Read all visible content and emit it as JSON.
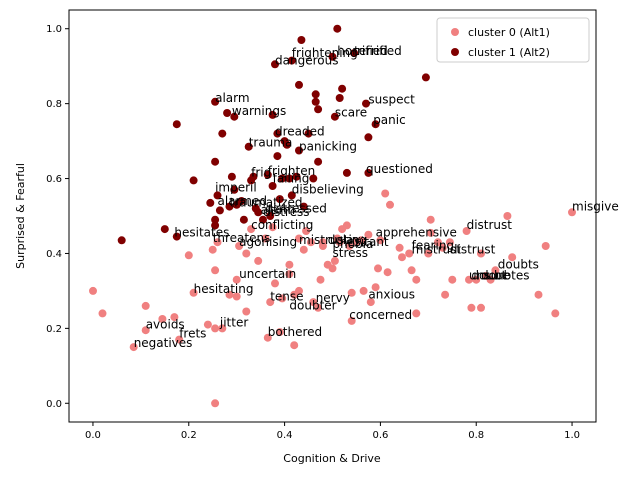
{
  "chart_data": {
    "type": "scatter",
    "xlabel": "Cognition & Drive",
    "ylabel": "Surprised & Fearful",
    "xlim": [
      -0.05,
      1.05
    ],
    "ylim": [
      -0.05,
      1.05
    ],
    "xticks": [
      "0.0",
      "0.2",
      "0.4",
      "0.6",
      "0.8",
      "1.0"
    ],
    "yticks": [
      "0.0",
      "0.2",
      "0.4",
      "0.6",
      "0.8",
      "1.0"
    ],
    "grid": false,
    "legend_position": "top-right",
    "series": [
      {
        "name": "cluster 0 (Alt1)",
        "color": "#f08080",
        "points": [
          [
            0.0,
            0.3
          ],
          [
            0.02,
            0.24
          ],
          [
            0.085,
            0.15
          ],
          [
            0.11,
            0.26
          ],
          [
            0.11,
            0.195
          ],
          [
            0.145,
            0.225
          ],
          [
            0.17,
            0.23
          ],
          [
            0.18,
            0.17
          ],
          [
            0.2,
            0.395
          ],
          [
            0.21,
            0.295
          ],
          [
            0.24,
            0.21
          ],
          [
            0.25,
            0.41
          ],
          [
            0.255,
            0.0
          ],
          [
            0.255,
            0.355
          ],
          [
            0.255,
            0.2
          ],
          [
            0.26,
            0.43
          ],
          [
            0.27,
            0.2
          ],
          [
            0.285,
            0.29
          ],
          [
            0.3,
            0.285
          ],
          [
            0.3,
            0.33
          ],
          [
            0.305,
            0.42
          ],
          [
            0.32,
            0.4
          ],
          [
            0.32,
            0.245
          ],
          [
            0.33,
            0.465
          ],
          [
            0.345,
            0.38
          ],
          [
            0.36,
            0.44
          ],
          [
            0.365,
            0.175
          ],
          [
            0.37,
            0.27
          ],
          [
            0.375,
            0.47
          ],
          [
            0.38,
            0.32
          ],
          [
            0.39,
            0.19
          ],
          [
            0.395,
            0.28
          ],
          [
            0.41,
            0.37
          ],
          [
            0.41,
            0.345
          ],
          [
            0.42,
            0.29
          ],
          [
            0.42,
            0.155
          ],
          [
            0.43,
            0.44
          ],
          [
            0.43,
            0.3
          ],
          [
            0.44,
            0.41
          ],
          [
            0.445,
            0.46
          ],
          [
            0.455,
            0.43
          ],
          [
            0.46,
            0.27
          ],
          [
            0.47,
            0.255
          ],
          [
            0.475,
            0.33
          ],
          [
            0.48,
            0.43
          ],
          [
            0.48,
            0.42
          ],
          [
            0.49,
            0.37
          ],
          [
            0.5,
            0.36
          ],
          [
            0.505,
            0.38
          ],
          [
            0.51,
            0.44
          ],
          [
            0.515,
            0.43
          ],
          [
            0.52,
            0.465
          ],
          [
            0.53,
            0.475
          ],
          [
            0.535,
            0.42
          ],
          [
            0.54,
            0.295
          ],
          [
            0.54,
            0.22
          ],
          [
            0.55,
            0.43
          ],
          [
            0.56,
            0.435
          ],
          [
            0.565,
            0.3
          ],
          [
            0.575,
            0.45
          ],
          [
            0.58,
            0.27
          ],
          [
            0.59,
            0.31
          ],
          [
            0.595,
            0.36
          ],
          [
            0.6,
            0.435
          ],
          [
            0.61,
            0.56
          ],
          [
            0.615,
            0.35
          ],
          [
            0.62,
            0.53
          ],
          [
            0.64,
            0.415
          ],
          [
            0.645,
            0.39
          ],
          [
            0.66,
            0.4
          ],
          [
            0.665,
            0.355
          ],
          [
            0.675,
            0.33
          ],
          [
            0.675,
            0.24
          ],
          [
            0.7,
            0.4
          ],
          [
            0.705,
            0.49
          ],
          [
            0.705,
            0.455
          ],
          [
            0.72,
            0.43
          ],
          [
            0.73,
            0.415
          ],
          [
            0.735,
            0.29
          ],
          [
            0.745,
            0.43
          ],
          [
            0.75,
            0.33
          ],
          [
            0.78,
            0.46
          ],
          [
            0.785,
            0.33
          ],
          [
            0.79,
            0.255
          ],
          [
            0.8,
            0.33
          ],
          [
            0.81,
            0.4
          ],
          [
            0.81,
            0.255
          ],
          [
            0.82,
            0.34
          ],
          [
            0.83,
            0.33
          ],
          [
            0.84,
            0.355
          ],
          [
            0.865,
            0.5
          ],
          [
            0.875,
            0.39
          ],
          [
            0.93,
            0.29
          ],
          [
            0.945,
            0.42
          ],
          [
            0.965,
            0.24
          ],
          [
            1.0,
            0.51
          ]
        ]
      },
      {
        "name": "cluster 1 (Alt2)",
        "color": "#800000",
        "points": [
          [
            0.06,
            0.435
          ],
          [
            0.15,
            0.465
          ],
          [
            0.175,
            0.445
          ],
          [
            0.175,
            0.745
          ],
          [
            0.21,
            0.595
          ],
          [
            0.245,
            0.535
          ],
          [
            0.255,
            0.805
          ],
          [
            0.255,
            0.645
          ],
          [
            0.255,
            0.49
          ],
          [
            0.255,
            0.475
          ],
          [
            0.26,
            0.555
          ],
          [
            0.265,
            0.515
          ],
          [
            0.27,
            0.72
          ],
          [
            0.28,
            0.775
          ],
          [
            0.285,
            0.525
          ],
          [
            0.29,
            0.605
          ],
          [
            0.295,
            0.57
          ],
          [
            0.295,
            0.765
          ],
          [
            0.3,
            0.53
          ],
          [
            0.31,
            0.54
          ],
          [
            0.315,
            0.49
          ],
          [
            0.325,
            0.685
          ],
          [
            0.33,
            0.595
          ],
          [
            0.335,
            0.605
          ],
          [
            0.34,
            0.52
          ],
          [
            0.345,
            0.51
          ],
          [
            0.355,
            0.49
          ],
          [
            0.365,
            0.61
          ],
          [
            0.37,
            0.5
          ],
          [
            0.375,
            0.58
          ],
          [
            0.375,
            0.77
          ],
          [
            0.38,
            0.905
          ],
          [
            0.385,
            0.66
          ],
          [
            0.385,
            0.72
          ],
          [
            0.39,
            0.545
          ],
          [
            0.395,
            0.6
          ],
          [
            0.4,
            0.7
          ],
          [
            0.405,
            0.69
          ],
          [
            0.41,
            0.6
          ],
          [
            0.415,
            0.915
          ],
          [
            0.415,
            0.555
          ],
          [
            0.425,
            0.605
          ],
          [
            0.43,
            0.85
          ],
          [
            0.43,
            0.675
          ],
          [
            0.435,
            0.97
          ],
          [
            0.44,
            0.525
          ],
          [
            0.45,
            0.72
          ],
          [
            0.46,
            0.6
          ],
          [
            0.465,
            0.805
          ],
          [
            0.465,
            0.825
          ],
          [
            0.47,
            0.785
          ],
          [
            0.47,
            0.645
          ],
          [
            0.5,
            0.925
          ],
          [
            0.505,
            0.765
          ],
          [
            0.51,
            1.0
          ],
          [
            0.515,
            0.815
          ],
          [
            0.52,
            0.84
          ],
          [
            0.53,
            0.615
          ],
          [
            0.545,
            0.935
          ],
          [
            0.57,
            0.8
          ],
          [
            0.575,
            0.615
          ],
          [
            0.575,
            0.71
          ],
          [
            0.59,
            0.745
          ],
          [
            0.695,
            0.87
          ]
        ]
      }
    ],
    "labels": [
      {
        "text": "horrified",
        "x": 0.51,
        "y": 0.93
      },
      {
        "text": "terrified",
        "x": 0.545,
        "y": 0.93
      },
      {
        "text": "frightening",
        "x": 0.415,
        "y": 0.925
      },
      {
        "text": "dangerous",
        "x": 0.38,
        "y": 0.905
      },
      {
        "text": "suspect",
        "x": 0.575,
        "y": 0.8
      },
      {
        "text": "alarm",
        "x": 0.255,
        "y": 0.805
      },
      {
        "text": "warnings",
        "x": 0.29,
        "y": 0.77
      },
      {
        "text": "scare",
        "x": 0.505,
        "y": 0.765
      },
      {
        "text": "panic",
        "x": 0.585,
        "y": 0.745
      },
      {
        "text": "dreaded",
        "x": 0.38,
        "y": 0.715
      },
      {
        "text": "trauma",
        "x": 0.325,
        "y": 0.685
      },
      {
        "text": "panicking",
        "x": 0.43,
        "y": 0.675
      },
      {
        "text": "questioned",
        "x": 0.57,
        "y": 0.615
      },
      {
        "text": "frighten",
        "x": 0.365,
        "y": 0.61
      },
      {
        "text": "frig",
        "x": 0.33,
        "y": 0.605
      },
      {
        "text": "failing",
        "x": 0.375,
        "y": 0.59
      },
      {
        "text": "imperil",
        "x": 0.255,
        "y": 0.565
      },
      {
        "text": "disbelieving",
        "x": 0.415,
        "y": 0.56
      },
      {
        "text": "alarmed",
        "x": 0.26,
        "y": 0.53
      },
      {
        "text": "traumatized",
        "x": 0.285,
        "y": 0.525
      },
      {
        "text": "distressed",
        "x": 0.36,
        "y": 0.51
      },
      {
        "text": "alarm",
        "x": 0.35,
        "y": 0.505
      },
      {
        "text": "distress",
        "x": 0.355,
        "y": 0.5
      },
      {
        "text": "conflicting",
        "x": 0.33,
        "y": 0.465
      },
      {
        "text": "misgive",
        "x": 1.0,
        "y": 0.515
      },
      {
        "text": "distrust",
        "x": 0.78,
        "y": 0.465
      },
      {
        "text": "apprehensive",
        "x": 0.59,
        "y": 0.445
      },
      {
        "text": "hesitates",
        "x": 0.17,
        "y": 0.445
      },
      {
        "text": "threatens",
        "x": 0.25,
        "y": 0.43
      },
      {
        "text": "agonising",
        "x": 0.305,
        "y": 0.42
      },
      {
        "text": "mistrusting",
        "x": 0.43,
        "y": 0.425
      },
      {
        "text": "delay",
        "x": 0.49,
        "y": 0.425
      },
      {
        "text": "phobia",
        "x": 0.5,
        "y": 0.415
      },
      {
        "text": "hesitant",
        "x": 0.515,
        "y": 0.42
      },
      {
        "text": "fearing",
        "x": 0.665,
        "y": 0.41
      },
      {
        "text": "mistrust",
        "x": 0.665,
        "y": 0.4
      },
      {
        "text": "distrust",
        "x": 0.745,
        "y": 0.4
      },
      {
        "text": "stress",
        "x": 0.5,
        "y": 0.39
      },
      {
        "text": "doubts",
        "x": 0.845,
        "y": 0.36
      },
      {
        "text": "uncertain",
        "x": 0.305,
        "y": 0.335
      },
      {
        "text": "unsure",
        "x": 0.785,
        "y": 0.33
      },
      {
        "text": "doubt",
        "x": 0.79,
        "y": 0.33
      },
      {
        "text": "doubtes",
        "x": 0.81,
        "y": 0.33
      },
      {
        "text": "hesitating",
        "x": 0.21,
        "y": 0.295
      },
      {
        "text": "anxious",
        "x": 0.575,
        "y": 0.28
      },
      {
        "text": "tense",
        "x": 0.37,
        "y": 0.275
      },
      {
        "text": "nervy",
        "x": 0.465,
        "y": 0.27
      },
      {
        "text": "doubter",
        "x": 0.41,
        "y": 0.25
      },
      {
        "text": "concerned",
        "x": 0.535,
        "y": 0.225
      },
      {
        "text": "avoids",
        "x": 0.11,
        "y": 0.2
      },
      {
        "text": "jitter",
        "x": 0.265,
        "y": 0.205
      },
      {
        "text": "bothered",
        "x": 0.365,
        "y": 0.18
      },
      {
        "text": "frets",
        "x": 0.18,
        "y": 0.175
      },
      {
        "text": "negatives",
        "x": 0.085,
        "y": 0.15
      }
    ]
  }
}
